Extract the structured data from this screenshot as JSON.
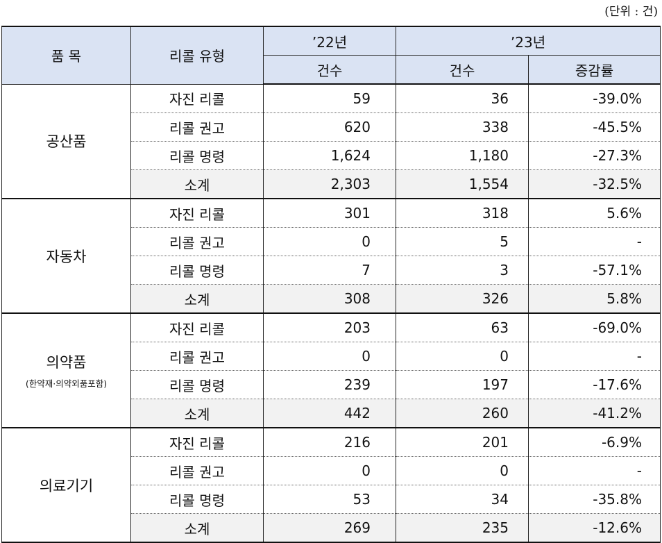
{
  "unit_label": "(단위 : 건)",
  "header": {
    "category": "품  목",
    "recall_type": "리콜 유형",
    "year22": "’22년",
    "year23": "’23년",
    "count22": "건수",
    "count23": "건수",
    "change": "증감률"
  },
  "groups": [
    {
      "name": "공산품",
      "note": "",
      "rows": [
        {
          "type": "자진 리콜",
          "y22": "59",
          "y23": "36",
          "rate": "-39.0%"
        },
        {
          "type": "리콜 권고",
          "y22": "620",
          "y23": "338",
          "rate": "-45.5%"
        },
        {
          "type": "리콜 명령",
          "y22": "1,624",
          "y23": "1,180",
          "rate": "-27.3%"
        },
        {
          "type": "소계",
          "y22": "2,303",
          "y23": "1,554",
          "rate": "-32.5%"
        }
      ]
    },
    {
      "name": "자동차",
      "note": "",
      "rows": [
        {
          "type": "자진 리콜",
          "y22": "301",
          "y23": "318",
          "rate": "5.6%"
        },
        {
          "type": "리콜 권고",
          "y22": "0",
          "y23": "5",
          "rate": "-"
        },
        {
          "type": "리콜 명령",
          "y22": "7",
          "y23": "3",
          "rate": "-57.1%"
        },
        {
          "type": "소계",
          "y22": "308",
          "y23": "326",
          "rate": "5.8%"
        }
      ]
    },
    {
      "name": "의약품",
      "note": "(한약재·의약외품포함)",
      "rows": [
        {
          "type": "자진 리콜",
          "y22": "203",
          "y23": "63",
          "rate": "-69.0%"
        },
        {
          "type": "리콜 권고",
          "y22": "0",
          "y23": "0",
          "rate": "-"
        },
        {
          "type": "리콜 명령",
          "y22": "239",
          "y23": "197",
          "rate": "-17.6%"
        },
        {
          "type": "소계",
          "y22": "442",
          "y23": "260",
          "rate": "-41.2%"
        }
      ]
    },
    {
      "name": "의료기기",
      "note": "",
      "rows": [
        {
          "type": "자진 리콜",
          "y22": "216",
          "y23": "201",
          "rate": "-6.9%"
        },
        {
          "type": "리콜 권고",
          "y22": "0",
          "y23": "0",
          "rate": "-"
        },
        {
          "type": "리콜 명령",
          "y22": "53",
          "y23": "34",
          "rate": "-35.8%"
        },
        {
          "type": "소계",
          "y22": "269",
          "y23": "235",
          "rate": "-12.6%"
        }
      ]
    }
  ]
}
